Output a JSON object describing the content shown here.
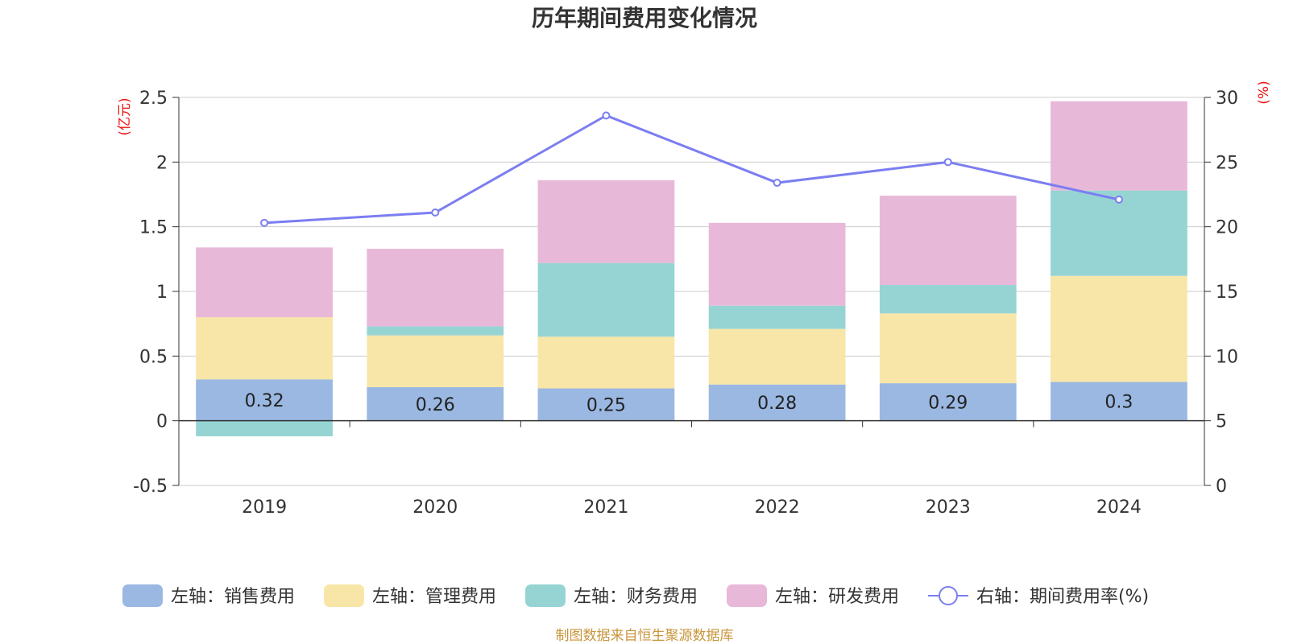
{
  "chart_data": {
    "type": "bar",
    "title": "历年期间费用变化情况",
    "categories": [
      "2019",
      "2020",
      "2021",
      "2022",
      "2023",
      "2024"
    ],
    "left_axis": {
      "unit": "(亿元)",
      "ylim": [
        -0.5,
        2.5
      ],
      "ticks": [
        -0.5,
        0,
        0.5,
        1,
        1.5,
        2,
        2.5
      ],
      "tick_labels": [
        "-0.5",
        "0",
        "0.5",
        "1",
        "1.5",
        "2",
        "2.5"
      ]
    },
    "right_axis": {
      "unit": "(%)",
      "ylim": [
        0,
        30
      ],
      "ticks": [
        0,
        5,
        10,
        15,
        20,
        25,
        30
      ],
      "tick_labels": [
        "0",
        "5",
        "10",
        "15",
        "20",
        "25",
        "30"
      ]
    },
    "stacked": true,
    "series": [
      {
        "name": "左轴：销售费用",
        "axis": "left",
        "type": "bar",
        "color": "#9ab8e2",
        "values": [
          0.32,
          0.26,
          0.25,
          0.28,
          0.29,
          0.3
        ],
        "labels": [
          "0.32",
          "0.26",
          "0.25",
          "0.28",
          "0.29",
          "0.3"
        ]
      },
      {
        "name": "左轴：管理费用",
        "axis": "left",
        "type": "bar",
        "color": "#f8e6a8",
        "values": [
          0.48,
          0.4,
          0.4,
          0.43,
          0.54,
          0.82
        ]
      },
      {
        "name": "左轴：财务费用",
        "axis": "left",
        "type": "bar",
        "color": "#96d4d4",
        "values": [
          -0.12,
          0.07,
          0.57,
          0.18,
          0.22,
          0.66
        ]
      },
      {
        "name": "左轴：研发费用",
        "axis": "left",
        "type": "bar",
        "color": "#e8b8d8",
        "values": [
          0.54,
          0.6,
          0.64,
          0.64,
          0.69,
          0.69
        ]
      },
      {
        "name": "右轴：期间费用率(%)",
        "axis": "right",
        "type": "line",
        "color": "#7b7ef0",
        "values": [
          20.3,
          21.1,
          28.6,
          23.4,
          25.0,
          22.1
        ]
      }
    ],
    "legend_position": "bottom",
    "grid": true
  },
  "footer": {
    "source": "制图数据来自恒生聚源数据库"
  }
}
